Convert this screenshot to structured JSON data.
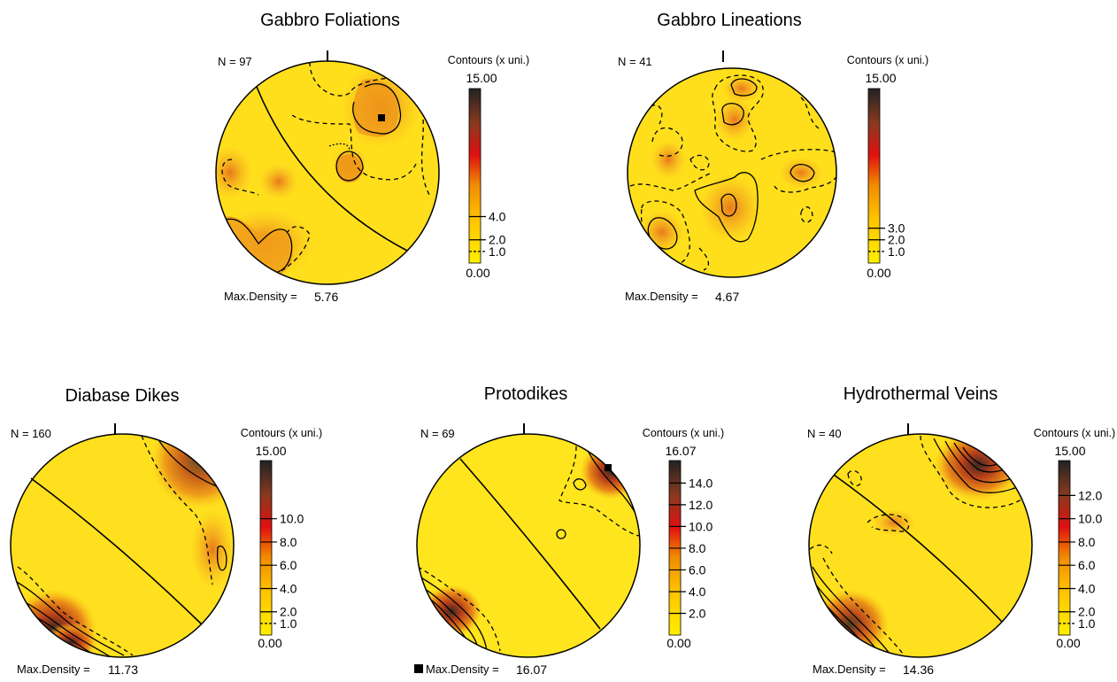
{
  "chart_data": [
    {
      "type": "contour",
      "title": "Gabbro Foliations",
      "n_label": "N = 97",
      "contours_title": "Contours (x uni.)",
      "scale_max_label": "15.00",
      "scale_min_label": "0.00",
      "scale_max": 15,
      "levels": [
        "4.0",
        "2.0",
        "1.0"
      ],
      "level_values": [
        4,
        2,
        1
      ],
      "max_density_label": "Max.Density =",
      "max_density": "5.76",
      "great_circle": true,
      "max_marker": true
    },
    {
      "type": "contour",
      "title": "Gabbro Lineations",
      "n_label": "N = 41",
      "contours_title": "Contours (x uni.)",
      "scale_max_label": "15.00",
      "scale_min_label": "0.00",
      "scale_max": 15,
      "levels": [
        "3.0",
        "2.0",
        "1.0"
      ],
      "level_values": [
        3,
        2,
        1
      ],
      "max_density_label": "Max.Density =",
      "max_density": "4.67",
      "great_circle": false,
      "max_marker": false
    },
    {
      "type": "contour",
      "title": "Diabase Dikes",
      "n_label": "N = 160",
      "contours_title": "Contours (x uni.)",
      "scale_max_label": "15.00",
      "scale_min_label": "0.00",
      "scale_max": 15,
      "levels": [
        "10.0",
        "8.0",
        "6.0",
        "4.0",
        "2.0",
        "1.0"
      ],
      "level_values": [
        10,
        8,
        6,
        4,
        2,
        1
      ],
      "max_density_label": "Max.Density =",
      "max_density": "11.73",
      "great_circle": true,
      "max_marker": false
    },
    {
      "type": "contour",
      "title": "Protodikes",
      "n_label": "N = 69",
      "contours_title": "Contours (x uni.)",
      "scale_max_label": "16.07",
      "scale_min_label": "0.00",
      "scale_max": 16.07,
      "levels": [
        "14.0",
        "12.0",
        "10.0",
        "8.0",
        "6.0",
        "4.0",
        "2.0"
      ],
      "level_values": [
        14,
        12,
        10,
        8,
        6,
        4,
        2
      ],
      "max_density_label": "Max.Density =",
      "max_density": "16.07",
      "great_circle": true,
      "max_marker": true
    },
    {
      "type": "contour",
      "title": "Hydrothermal Veins",
      "n_label": "N = 40",
      "contours_title": "Contours (x uni.)",
      "scale_max_label": "15.00",
      "scale_min_label": "0.00",
      "scale_max": 15,
      "levels": [
        "12.0",
        "10.0",
        "8.0",
        "6.0",
        "4.0",
        "2.0",
        "1.0"
      ],
      "level_values": [
        12,
        10,
        8,
        6,
        4,
        2,
        1
      ],
      "max_density_label": "Max.Density =",
      "max_density": "14.36",
      "great_circle": true,
      "max_marker": false
    }
  ]
}
